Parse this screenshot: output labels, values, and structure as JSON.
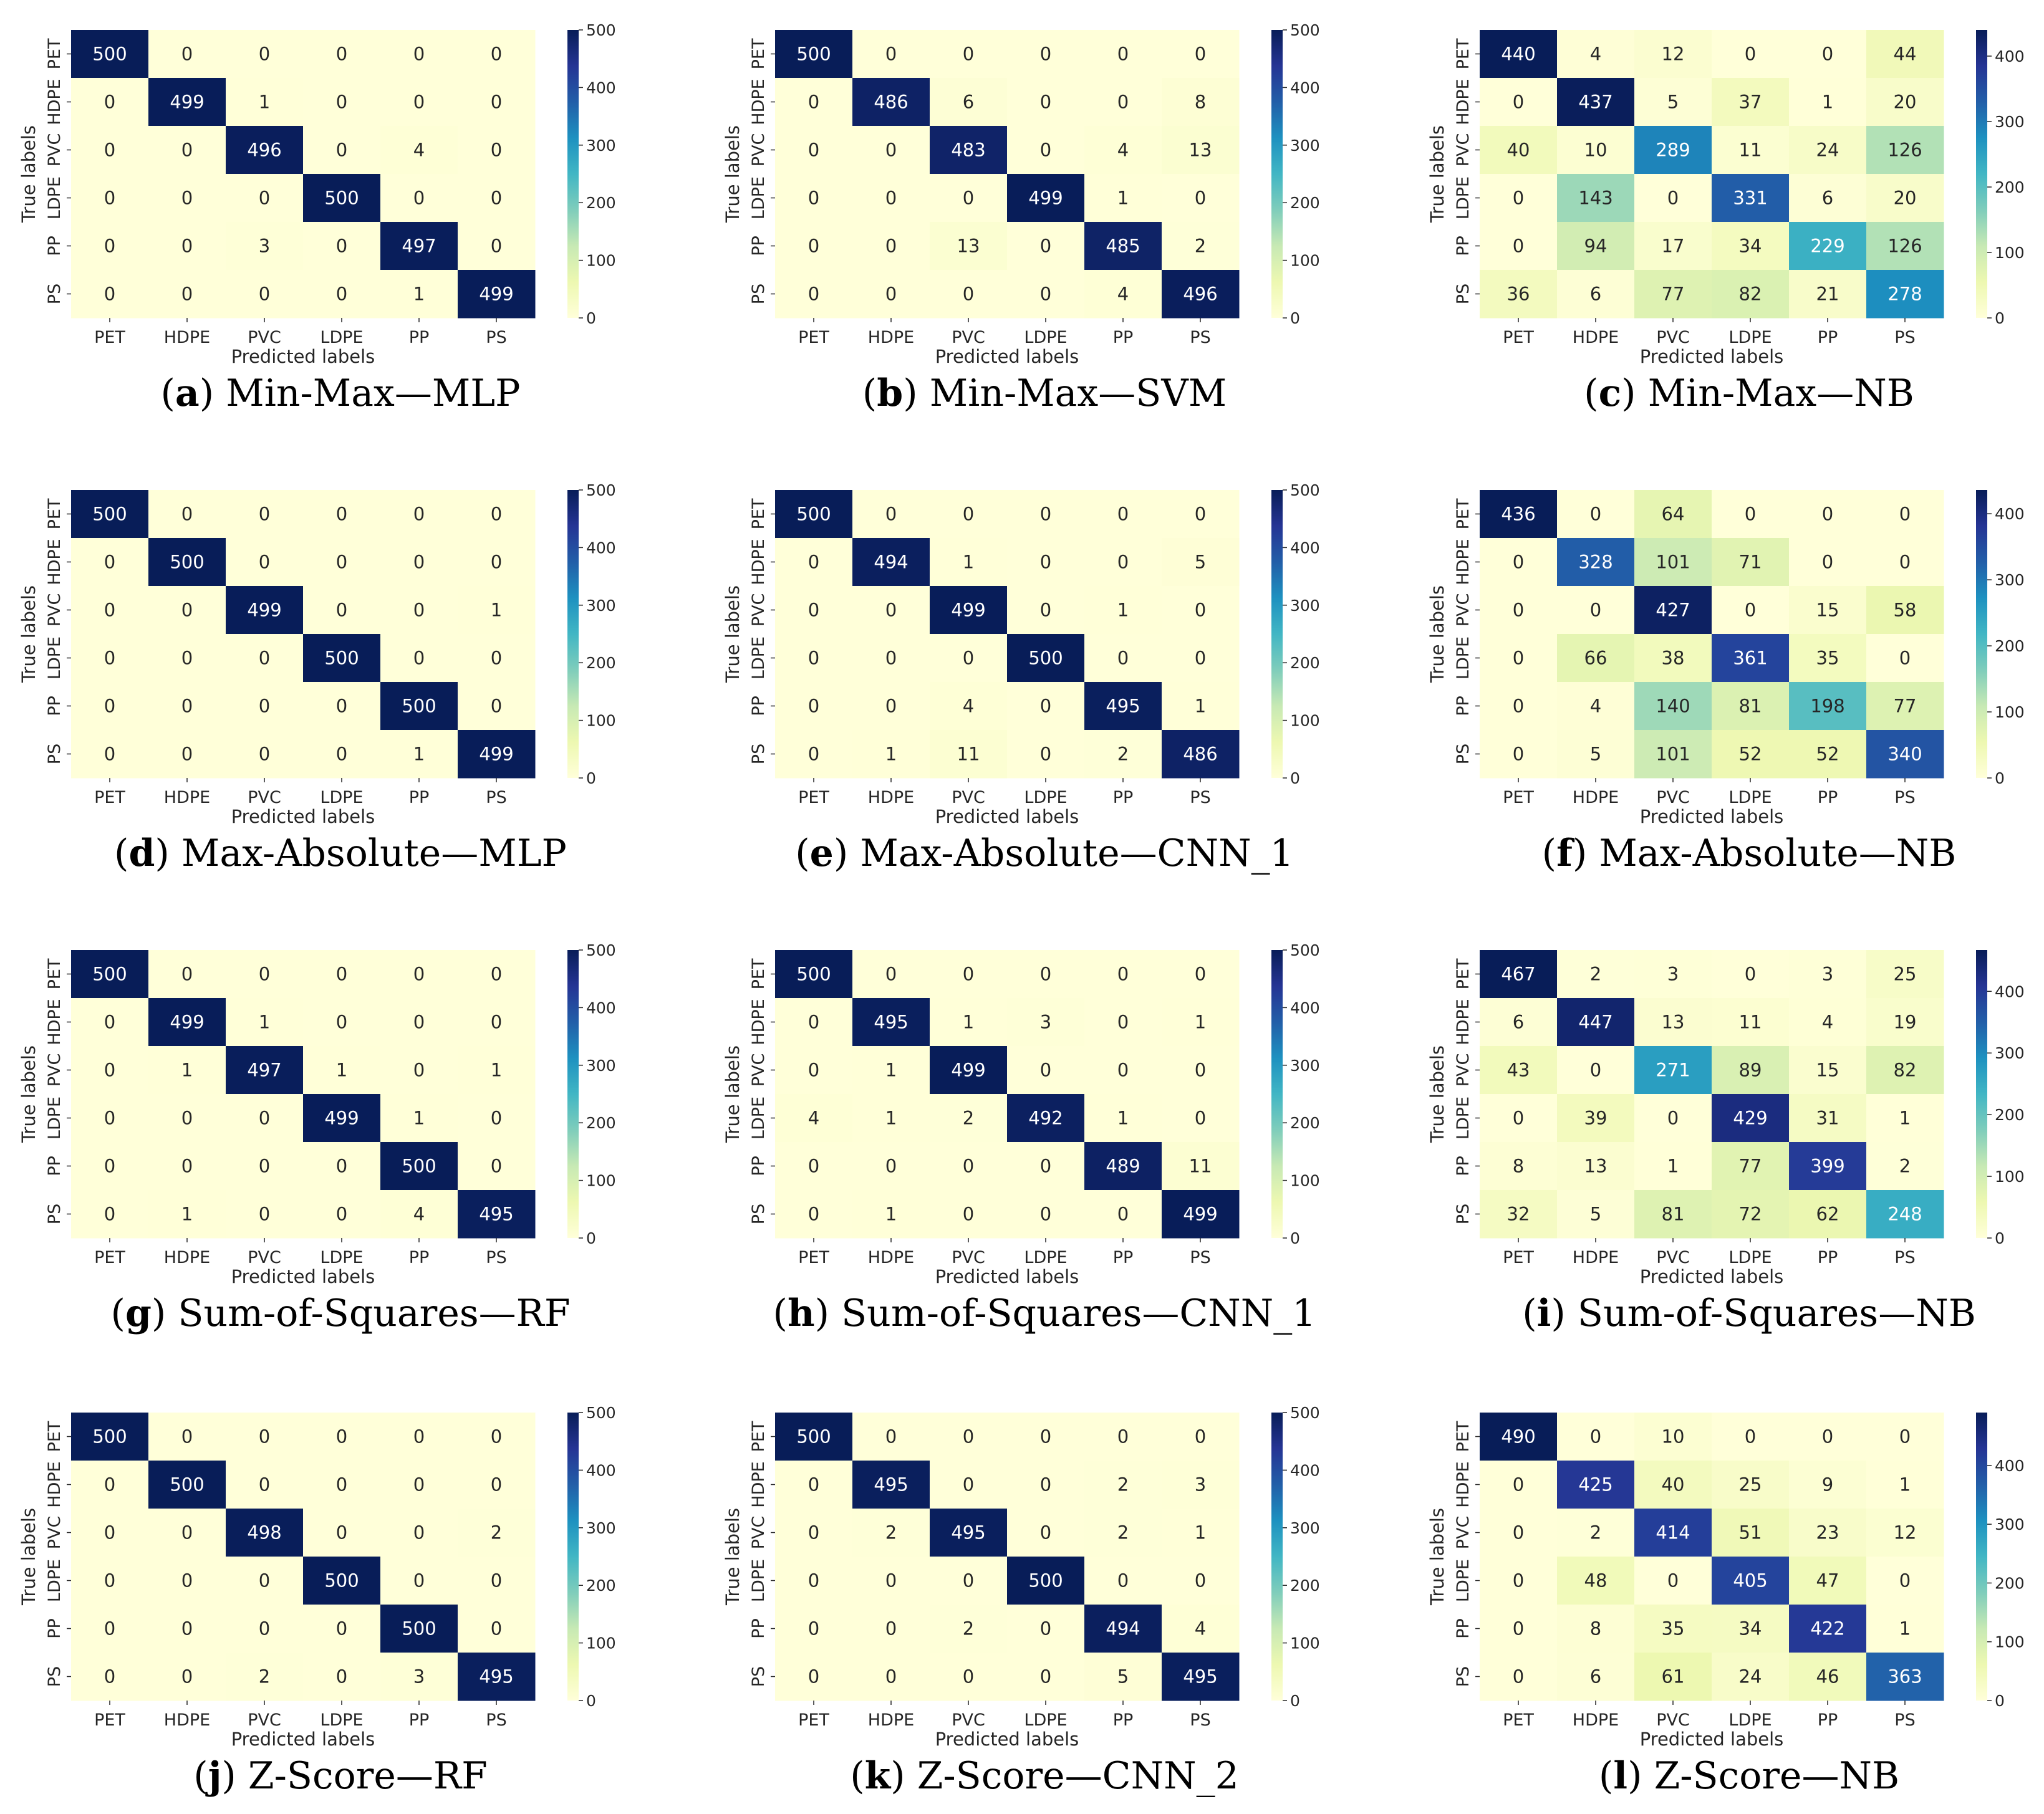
{
  "figure": {
    "colormap": "YlGnBu",
    "chart_data": [
      {
        "type": "heatmap",
        "panel_letter": "a",
        "caption": "Min-Max—MLP",
        "xlabel": "Predicted labels",
        "ylabel": "True labels",
        "categories": [
          "PET",
          "HDPE",
          "PVC",
          "LDPE",
          "PP",
          "PS"
        ],
        "values": [
          [
            500,
            0,
            0,
            0,
            0,
            0
          ],
          [
            0,
            499,
            1,
            0,
            0,
            0
          ],
          [
            0,
            0,
            496,
            0,
            4,
            0
          ],
          [
            0,
            0,
            0,
            500,
            0,
            0
          ],
          [
            0,
            0,
            3,
            0,
            497,
            0
          ],
          [
            0,
            0,
            0,
            0,
            1,
            499
          ]
        ],
        "vmin": 0,
        "vmax": 500,
        "colorbar_ticks": [
          0,
          100,
          200,
          300,
          400,
          500
        ]
      },
      {
        "type": "heatmap",
        "panel_letter": "b",
        "caption": "Min-Max—SVM",
        "xlabel": "Predicted labels",
        "ylabel": "True labels",
        "categories": [
          "PET",
          "HDPE",
          "PVC",
          "LDPE",
          "PP",
          "PS"
        ],
        "values": [
          [
            500,
            0,
            0,
            0,
            0,
            0
          ],
          [
            0,
            486,
            6,
            0,
            0,
            8
          ],
          [
            0,
            0,
            483,
            0,
            4,
            13
          ],
          [
            0,
            0,
            0,
            499,
            1,
            0
          ],
          [
            0,
            0,
            13,
            0,
            485,
            2
          ],
          [
            0,
            0,
            0,
            0,
            4,
            496
          ]
        ],
        "vmin": 0,
        "vmax": 500,
        "colorbar_ticks": [
          0,
          100,
          200,
          300,
          400,
          500
        ]
      },
      {
        "type": "heatmap",
        "panel_letter": "c",
        "caption": "Min-Max—NB",
        "xlabel": "Predicted labels",
        "ylabel": "True labels",
        "categories": [
          "PET",
          "HDPE",
          "PVC",
          "LDPE",
          "PP",
          "PS"
        ],
        "values": [
          [
            440,
            4,
            12,
            0,
            0,
            44
          ],
          [
            0,
            437,
            5,
            37,
            1,
            20
          ],
          [
            40,
            10,
            289,
            11,
            24,
            126
          ],
          [
            0,
            143,
            0,
            331,
            6,
            20
          ],
          [
            0,
            94,
            17,
            34,
            229,
            126
          ],
          [
            36,
            6,
            77,
            82,
            21,
            278
          ]
        ],
        "vmin": 0,
        "vmax": 440,
        "colorbar_ticks": [
          0,
          100,
          200,
          300,
          400
        ]
      },
      {
        "type": "heatmap",
        "panel_letter": "d",
        "caption": "Max-Absolute—MLP",
        "xlabel": "Predicted labels",
        "ylabel": "True labels",
        "categories": [
          "PET",
          "HDPE",
          "PVC",
          "LDPE",
          "PP",
          "PS"
        ],
        "values": [
          [
            500,
            0,
            0,
            0,
            0,
            0
          ],
          [
            0,
            500,
            0,
            0,
            0,
            0
          ],
          [
            0,
            0,
            499,
            0,
            0,
            1
          ],
          [
            0,
            0,
            0,
            500,
            0,
            0
          ],
          [
            0,
            0,
            0,
            0,
            500,
            0
          ],
          [
            0,
            0,
            0,
            0,
            1,
            499
          ]
        ],
        "vmin": 0,
        "vmax": 500,
        "colorbar_ticks": [
          0,
          100,
          200,
          300,
          400,
          500
        ]
      },
      {
        "type": "heatmap",
        "panel_letter": "e",
        "caption": "Max-Absolute—CNN_1",
        "xlabel": "Predicted labels",
        "ylabel": "True labels",
        "categories": [
          "PET",
          "HDPE",
          "PVC",
          "LDPE",
          "PP",
          "PS"
        ],
        "values": [
          [
            500,
            0,
            0,
            0,
            0,
            0
          ],
          [
            0,
            494,
            1,
            0,
            0,
            5
          ],
          [
            0,
            0,
            499,
            0,
            1,
            0
          ],
          [
            0,
            0,
            0,
            500,
            0,
            0
          ],
          [
            0,
            0,
            4,
            0,
            495,
            1
          ],
          [
            0,
            1,
            11,
            0,
            2,
            486
          ]
        ],
        "vmin": 0,
        "vmax": 500,
        "colorbar_ticks": [
          0,
          100,
          200,
          300,
          400,
          500
        ]
      },
      {
        "type": "heatmap",
        "panel_letter": "f",
        "caption": "Max-Absolute—NB",
        "xlabel": "Predicted labels",
        "ylabel": "True labels",
        "categories": [
          "PET",
          "HDPE",
          "PVC",
          "LDPE",
          "PP",
          "PS"
        ],
        "values": [
          [
            436,
            0,
            64,
            0,
            0,
            0
          ],
          [
            0,
            328,
            101,
            71,
            0,
            0
          ],
          [
            0,
            0,
            427,
            0,
            15,
            58
          ],
          [
            0,
            66,
            38,
            361,
            35,
            0
          ],
          [
            0,
            4,
            140,
            81,
            198,
            77
          ],
          [
            0,
            5,
            101,
            52,
            52,
            340
          ]
        ],
        "vmin": 0,
        "vmax": 436,
        "colorbar_ticks": [
          0,
          100,
          200,
          300,
          400
        ]
      },
      {
        "type": "heatmap",
        "panel_letter": "g",
        "caption": "Sum-of-Squares—RF",
        "xlabel": "Predicted labels",
        "ylabel": "True labels",
        "categories": [
          "PET",
          "HDPE",
          "PVC",
          "LDPE",
          "PP",
          "PS"
        ],
        "values": [
          [
            500,
            0,
            0,
            0,
            0,
            0
          ],
          [
            0,
            499,
            1,
            0,
            0,
            0
          ],
          [
            0,
            1,
            497,
            1,
            0,
            1
          ],
          [
            0,
            0,
            0,
            499,
            1,
            0
          ],
          [
            0,
            0,
            0,
            0,
            500,
            0
          ],
          [
            0,
            1,
            0,
            0,
            4,
            495
          ]
        ],
        "vmin": 0,
        "vmax": 500,
        "colorbar_ticks": [
          0,
          100,
          200,
          300,
          400,
          500
        ]
      },
      {
        "type": "heatmap",
        "panel_letter": "h",
        "caption": "Sum-of-Squares—CNN_1",
        "xlabel": "Predicted labels",
        "ylabel": "True labels",
        "categories": [
          "PET",
          "HDPE",
          "PVC",
          "LDPE",
          "PP",
          "PS"
        ],
        "values": [
          [
            500,
            0,
            0,
            0,
            0,
            0
          ],
          [
            0,
            495,
            1,
            3,
            0,
            1
          ],
          [
            0,
            1,
            499,
            0,
            0,
            0
          ],
          [
            4,
            1,
            2,
            492,
            1,
            0
          ],
          [
            0,
            0,
            0,
            0,
            489,
            11
          ],
          [
            0,
            1,
            0,
            0,
            0,
            499
          ]
        ],
        "vmin": 0,
        "vmax": 500,
        "colorbar_ticks": [
          0,
          100,
          200,
          300,
          400,
          500
        ]
      },
      {
        "type": "heatmap",
        "panel_letter": "i",
        "caption": "Sum-of-Squares—NB",
        "xlabel": "Predicted labels",
        "ylabel": "True labels",
        "categories": [
          "PET",
          "HDPE",
          "PVC",
          "LDPE",
          "PP",
          "PS"
        ],
        "values": [
          [
            467,
            2,
            3,
            0,
            3,
            25
          ],
          [
            6,
            447,
            13,
            11,
            4,
            19
          ],
          [
            43,
            0,
            271,
            89,
            15,
            82
          ],
          [
            0,
            39,
            0,
            429,
            31,
            1
          ],
          [
            8,
            13,
            1,
            77,
            399,
            2
          ],
          [
            32,
            5,
            81,
            72,
            62,
            248
          ]
        ],
        "vmin": 0,
        "vmax": 467,
        "colorbar_ticks": [
          0,
          100,
          200,
          300,
          400
        ]
      },
      {
        "type": "heatmap",
        "panel_letter": "j",
        "caption": "Z-Score—RF",
        "xlabel": "Predicted labels",
        "ylabel": "True labels",
        "categories": [
          "PET",
          "HDPE",
          "PVC",
          "LDPE",
          "PP",
          "PS"
        ],
        "values": [
          [
            500,
            0,
            0,
            0,
            0,
            0
          ],
          [
            0,
            500,
            0,
            0,
            0,
            0
          ],
          [
            0,
            0,
            498,
            0,
            0,
            2
          ],
          [
            0,
            0,
            0,
            500,
            0,
            0
          ],
          [
            0,
            0,
            0,
            0,
            500,
            0
          ],
          [
            0,
            0,
            2,
            0,
            3,
            495
          ]
        ],
        "vmin": 0,
        "vmax": 500,
        "colorbar_ticks": [
          0,
          100,
          200,
          300,
          400,
          500
        ]
      },
      {
        "type": "heatmap",
        "panel_letter": "k",
        "caption": "Z-Score—CNN_2",
        "xlabel": "Predicted labels",
        "ylabel": "True labels",
        "categories": [
          "PET",
          "HDPE",
          "PVC",
          "LDPE",
          "PP",
          "PS"
        ],
        "values": [
          [
            500,
            0,
            0,
            0,
            0,
            0
          ],
          [
            0,
            495,
            0,
            0,
            2,
            3
          ],
          [
            0,
            2,
            495,
            0,
            2,
            1
          ],
          [
            0,
            0,
            0,
            500,
            0,
            0
          ],
          [
            0,
            0,
            2,
            0,
            494,
            4
          ],
          [
            0,
            0,
            0,
            0,
            5,
            495
          ]
        ],
        "vmin": 0,
        "vmax": 500,
        "colorbar_ticks": [
          0,
          100,
          200,
          300,
          400,
          500
        ]
      },
      {
        "type": "heatmap",
        "panel_letter": "l",
        "caption": "Z-Score—NB",
        "xlabel": "Predicted labels",
        "ylabel": "True labels",
        "categories": [
          "PET",
          "HDPE",
          "PVC",
          "LDPE",
          "PP",
          "PS"
        ],
        "values": [
          [
            490,
            0,
            10,
            0,
            0,
            0
          ],
          [
            0,
            425,
            40,
            25,
            9,
            1
          ],
          [
            0,
            2,
            414,
            51,
            23,
            12
          ],
          [
            0,
            48,
            0,
            405,
            47,
            0
          ],
          [
            0,
            8,
            35,
            34,
            422,
            1
          ],
          [
            0,
            6,
            61,
            24,
            46,
            363
          ]
        ],
        "vmin": 0,
        "vmax": 490,
        "colorbar_ticks": [
          0,
          100,
          200,
          300,
          400
        ]
      }
    ]
  }
}
